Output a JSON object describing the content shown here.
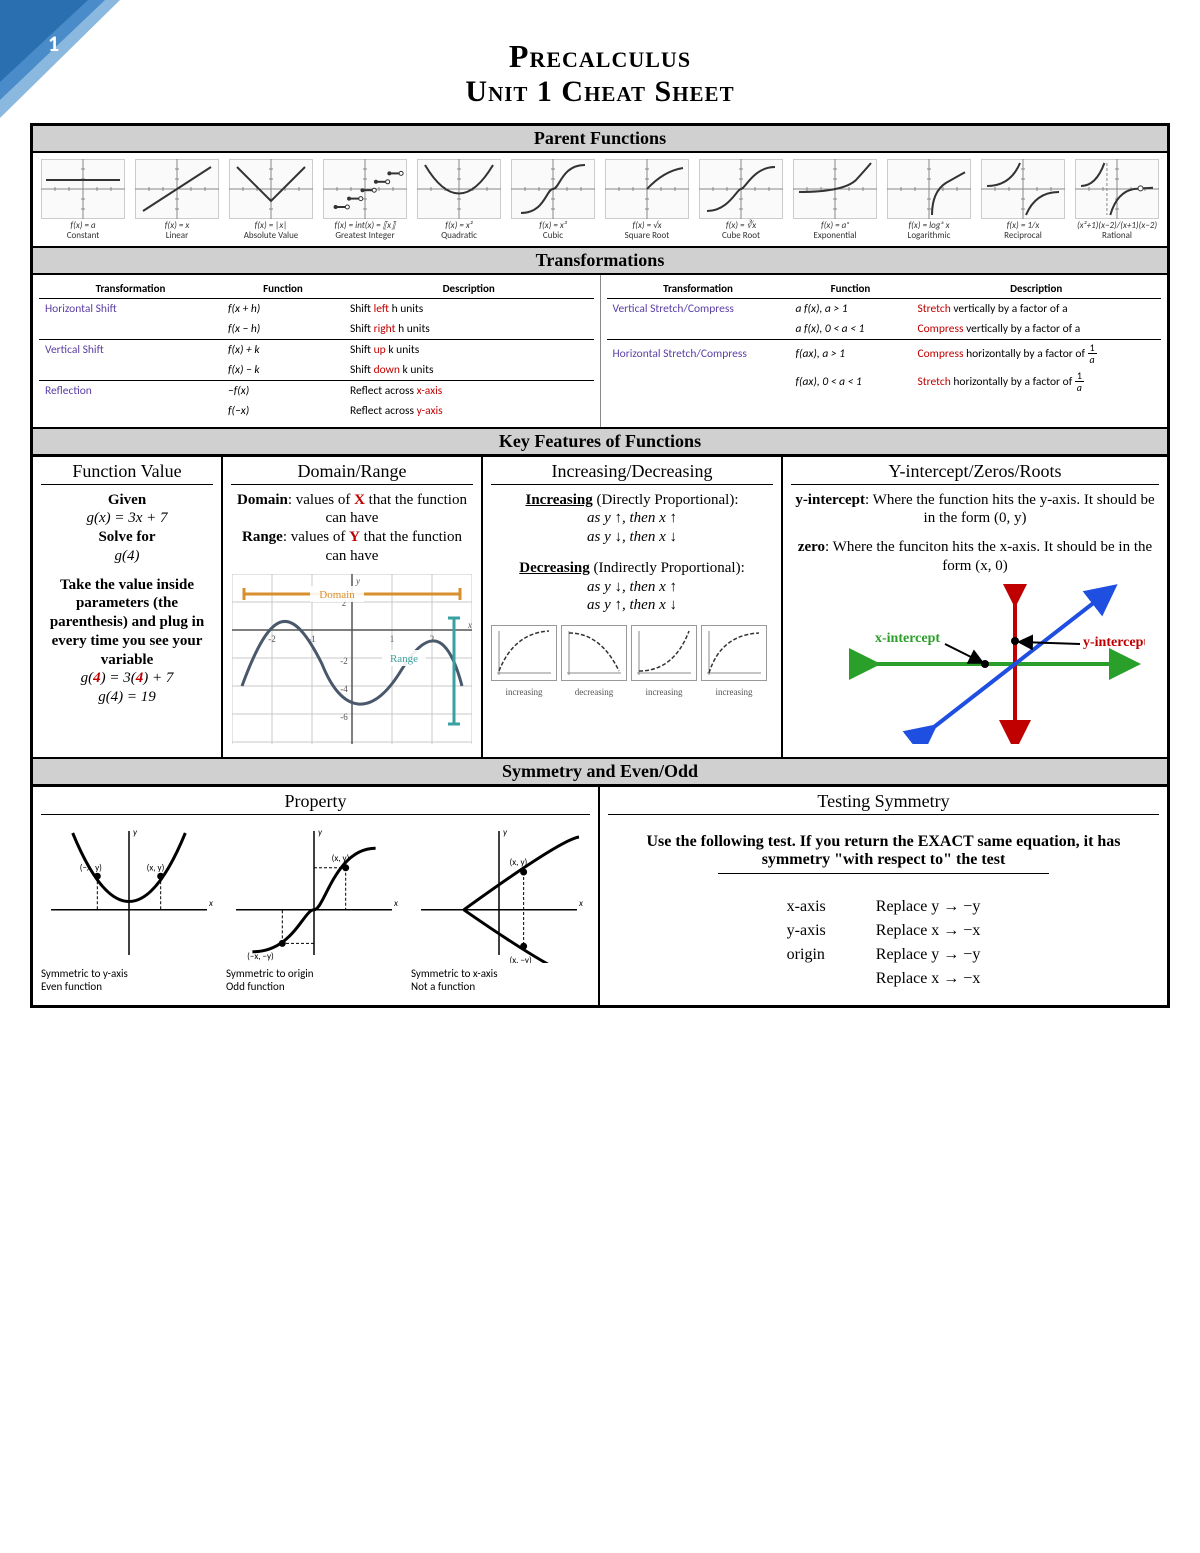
{
  "page_number": "1",
  "title_line1": "Precalculus",
  "title_line2": "Unit 1 Cheat Sheet",
  "colors": {
    "corner_dark": "#2a6fb0",
    "corner_mid": "#4a8cc9",
    "corner_light": "#8bb8de",
    "section_bg": "#d0d0d0",
    "purple": "#5b3fa6",
    "red": "#c00000",
    "green": "#2aa02a",
    "blue": "#1f4fe0",
    "orange": "#d98f2e",
    "teal": "#3aa0a0",
    "grid": "#c9c9c9",
    "curve": "#4a586b"
  },
  "sections": {
    "parent": "Parent Functions",
    "transforms": "Transformations",
    "keyfeat": "Key Features of Functions",
    "symmetry": "Symmetry and Even/Odd"
  },
  "parent_functions": [
    {
      "formula": "f(x) = a",
      "name": "Constant"
    },
    {
      "formula": "f(x) = x",
      "name": "Linear"
    },
    {
      "formula": "f(x) = |x|",
      "name": "Absolute Value"
    },
    {
      "formula": "f(x) = int(x) = ⟦x⟧",
      "name": "Greatest Integer"
    },
    {
      "formula": "f(x) = x²",
      "name": "Quadratic"
    },
    {
      "formula": "f(x) = x³",
      "name": "Cubic"
    },
    {
      "formula": "f(x) = √x",
      "name": "Square Root"
    },
    {
      "formula": "f(x) = ∛x",
      "name": "Cube Root"
    },
    {
      "formula": "f(x) = aˣ",
      "name": "Exponential"
    },
    {
      "formula": "f(x) = logₐ x",
      "name": "Logarithmic"
    },
    {
      "formula": "f(x) = 1/x",
      "name": "Reciprocal"
    },
    {
      "formula": "(x²+1)(x−2)/(x+1)(x−2)",
      "name": "Rational"
    }
  ],
  "transform_headers": [
    "Transformation",
    "Function",
    "Description"
  ],
  "transforms_left": [
    {
      "cat": "Horizontal Shift",
      "fn": "f(x + h)",
      "desc_pre": "Shift ",
      "kw": "left",
      "desc_post": " h units",
      "under": false
    },
    {
      "cat": "",
      "fn": "f(x − h)",
      "desc_pre": "Shift ",
      "kw": "right",
      "desc_post": " h units",
      "under": true
    },
    {
      "cat": "Vertical Shift",
      "fn": "f(x) + k",
      "desc_pre": "Shift ",
      "kw": "up",
      "desc_post": " k units",
      "under": false
    },
    {
      "cat": "",
      "fn": "f(x) − k",
      "desc_pre": "Shift ",
      "kw": "down",
      "desc_post": " k units",
      "under": true
    },
    {
      "cat": "Reflection",
      "fn": "−f(x)",
      "desc_pre": "Reflect across ",
      "kw": "x-axis",
      "desc_post": "",
      "under": false
    },
    {
      "cat": "",
      "fn": "f(−x)",
      "desc_pre": "Reflect across ",
      "kw": "y-axis",
      "desc_post": "",
      "under": false
    }
  ],
  "transforms_right": [
    {
      "cat": "Vertical Stretch/Compress",
      "fn": "a f(x), a > 1",
      "kw": "Stretch",
      "desc": " vertically by a factor of a",
      "frac": false,
      "under": false
    },
    {
      "cat": "",
      "fn": "a f(x), 0 < a < 1",
      "kw": "Compress",
      "desc": " vertically by a factor of a",
      "frac": false,
      "under": true
    },
    {
      "cat": "Horizontal Stretch/Compress",
      "fn": "f(ax), a > 1",
      "kw": "Compress",
      "desc": " horizontally by a factor of ",
      "frac": true,
      "under": false
    },
    {
      "cat": "",
      "fn": "f(ax), 0 < a < 1",
      "kw": "Stretch",
      "desc": " horizontally by a factor of ",
      "frac": true,
      "under": false
    }
  ],
  "kf": {
    "headers": [
      "Function Value",
      "Domain/Range",
      "Increasing/Decreasing",
      "Y-intercept/Zeros/Roots"
    ],
    "fv": {
      "given": "Given",
      "eq1": "g(x) = 3x + 7",
      "solve": "Solve for",
      "eq2": "g(4)",
      "para": "Take the value inside parameters (the parenthesis) and plug in every time you see your variable",
      "eq3_pre": "g(",
      "eq3_a": "4",
      "eq3_mid": ") = 3(",
      "eq3_b": "4",
      "eq3_post": ") + 7",
      "eq4": "g(4) = 19"
    },
    "dr": {
      "domain_label": "Domain",
      "domain_text": ": values of ",
      "x": "X",
      "domain_text2": " that the function can have",
      "range_label": "Range",
      "range_text": ": values of ",
      "y": "Y",
      "range_text2": " that the function can have",
      "img_domain": "Domain",
      "img_range": "Range"
    },
    "id": {
      "inc_head": "Increasing",
      "inc_sub": " (Directly Proportional):",
      "inc_l1": "as y  ↑, then x  ↑",
      "inc_l2": "as y  ↓, then x  ↓",
      "dec_head": "Decreasing",
      "dec_sub": " (Indirectly Proportional):",
      "dec_l1": "as y ↓, then x ↑",
      "dec_l2": "as y ↑, then x ↓",
      "mini_labels": [
        "increasing",
        "decreasing",
        "increasing",
        "increasing"
      ]
    },
    "yz": {
      "yint_label": "y-intercept",
      "yint_text": ": Where the function hits the y-axis. It should be in the form (0, y)",
      "zero_label": "zero",
      "zero_text": ": Where the funciton hits the x-axis. It should be in the form (x, 0)",
      "xint": "x-intercept",
      "yint": "y-intercept"
    }
  },
  "symmetry": {
    "prop_head": "Property",
    "test_head": "Testing Symmetry",
    "prop_items": [
      {
        "line1": "Symmetric to y-axis",
        "line2": "Even function",
        "pts": [
          "(−x, y)",
          "(x, y)"
        ]
      },
      {
        "line1": "Symmetric to origin",
        "line2": "Odd function",
        "pts": [
          "(x, y)",
          "(−x, −y)"
        ]
      },
      {
        "line1": "Symmetric to x-axis",
        "line2": "Not a function",
        "pts": [
          "(x, y)",
          "(x, −y)"
        ]
      }
    ],
    "test_intro": "Use the following test. If you return the EXACT same equation, it has symmetry \"with respect to\" the test",
    "tests": [
      {
        "axis": "x-axis",
        "repl": [
          "Replace y → −y"
        ]
      },
      {
        "axis": "y-axis",
        "repl": [
          "Replace x → −x"
        ]
      },
      {
        "axis": "origin",
        "repl": [
          "Replace y → −y",
          "Replace x → −x"
        ]
      }
    ]
  }
}
